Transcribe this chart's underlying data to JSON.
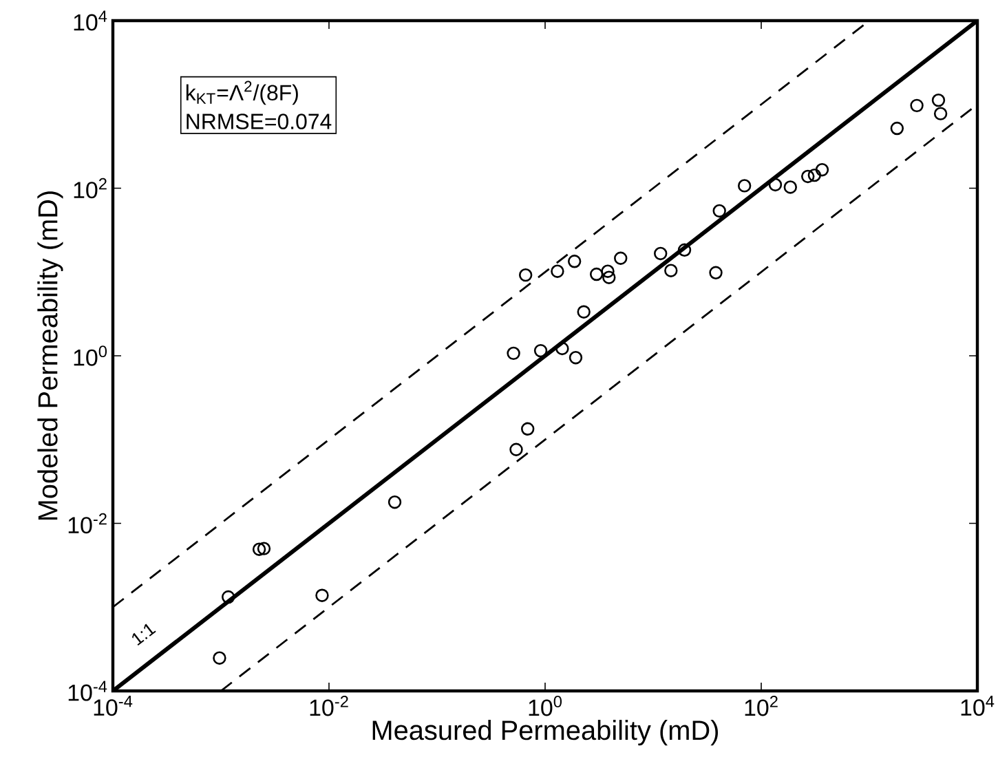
{
  "chart_data": {
    "type": "scatter",
    "xlabel": "Measured Permeability (mD)",
    "ylabel": "Modeled Permeability (mD)",
    "log": "xy",
    "grid": false,
    "xlim": [
      0.0001,
      10000
    ],
    "ylim": [
      0.0001,
      10000
    ],
    "xticks": [
      {
        "value": 0.0001,
        "label": "10$^{-4}$"
      },
      {
        "value": 0.01,
        "label": "10$^{-2}$"
      },
      {
        "value": 1,
        "label": "10$^{0}$"
      },
      {
        "value": 100,
        "label": "10$^{2}$"
      },
      {
        "value": 10000,
        "label": "10$^{4}$"
      }
    ],
    "yticks": [
      {
        "value": 0.0001,
        "label": "10$^{-4}$"
      },
      {
        "value": 0.01,
        "label": "10$^{-2}$"
      },
      {
        "value": 1,
        "label": "10$^{0}$"
      },
      {
        "value": 100,
        "label": "10$^{2}$"
      },
      {
        "value": 10000,
        "label": "10$^{4}$"
      }
    ],
    "annotations": [
      "k$_{KT}$=Λ$^{2}$/(8F)",
      "NRMSE=0.074",
      "1:1"
    ],
    "series": [
      {
        "color": "#000000",
        "marker": "circle",
        "x": [
          0.66,
          0.51,
          0.91,
          1.3,
          1.87,
          2.99,
          3.8,
          3.9,
          5.0,
          11.7,
          14.6,
          19.5,
          38,
          41,
          70,
          135,
          186,
          270,
          311,
          366,
          1807,
          2754,
          4365,
          4570,
          2.28,
          1.44,
          1.92,
          0.69,
          0.54,
          0.0406,
          0.00226,
          0.0025,
          0.00117,
          0.00863,
          0.00097
        ],
        "values": [
          9.2,
          1.07,
          1.15,
          10.2,
          13.4,
          9.4,
          10.2,
          8.6,
          14.6,
          16.6,
          10.4,
          18.3,
          9.8,
          53.6,
          107,
          110,
          103,
          138,
          143,
          166,
          518,
          970,
          1122,
          776,
          3.34,
          1.22,
          0.95,
          0.134,
          0.076,
          0.0179,
          0.0049,
          0.005,
          0.00132,
          0.00138,
          0.000247
        ]
      },
      {
        "type": "line",
        "color": "#000000",
        "marker": "none",
        "line_style": "solid",
        "x": [
          0.0001,
          10000
        ],
        "values": [
          0.0001,
          10000
        ]
      },
      {
        "type": "line",
        "color": "#000000",
        "marker": "none",
        "line_style": "dashed",
        "x": [
          0.0001,
          1000
        ],
        "values": [
          0.001,
          10000
        ]
      },
      {
        "type": "line",
        "color": "#000000",
        "marker": "none",
        "line_style": "dashed",
        "x": [
          0.001,
          10000
        ],
        "values": [
          0.0001,
          1000
        ]
      }
    ]
  }
}
